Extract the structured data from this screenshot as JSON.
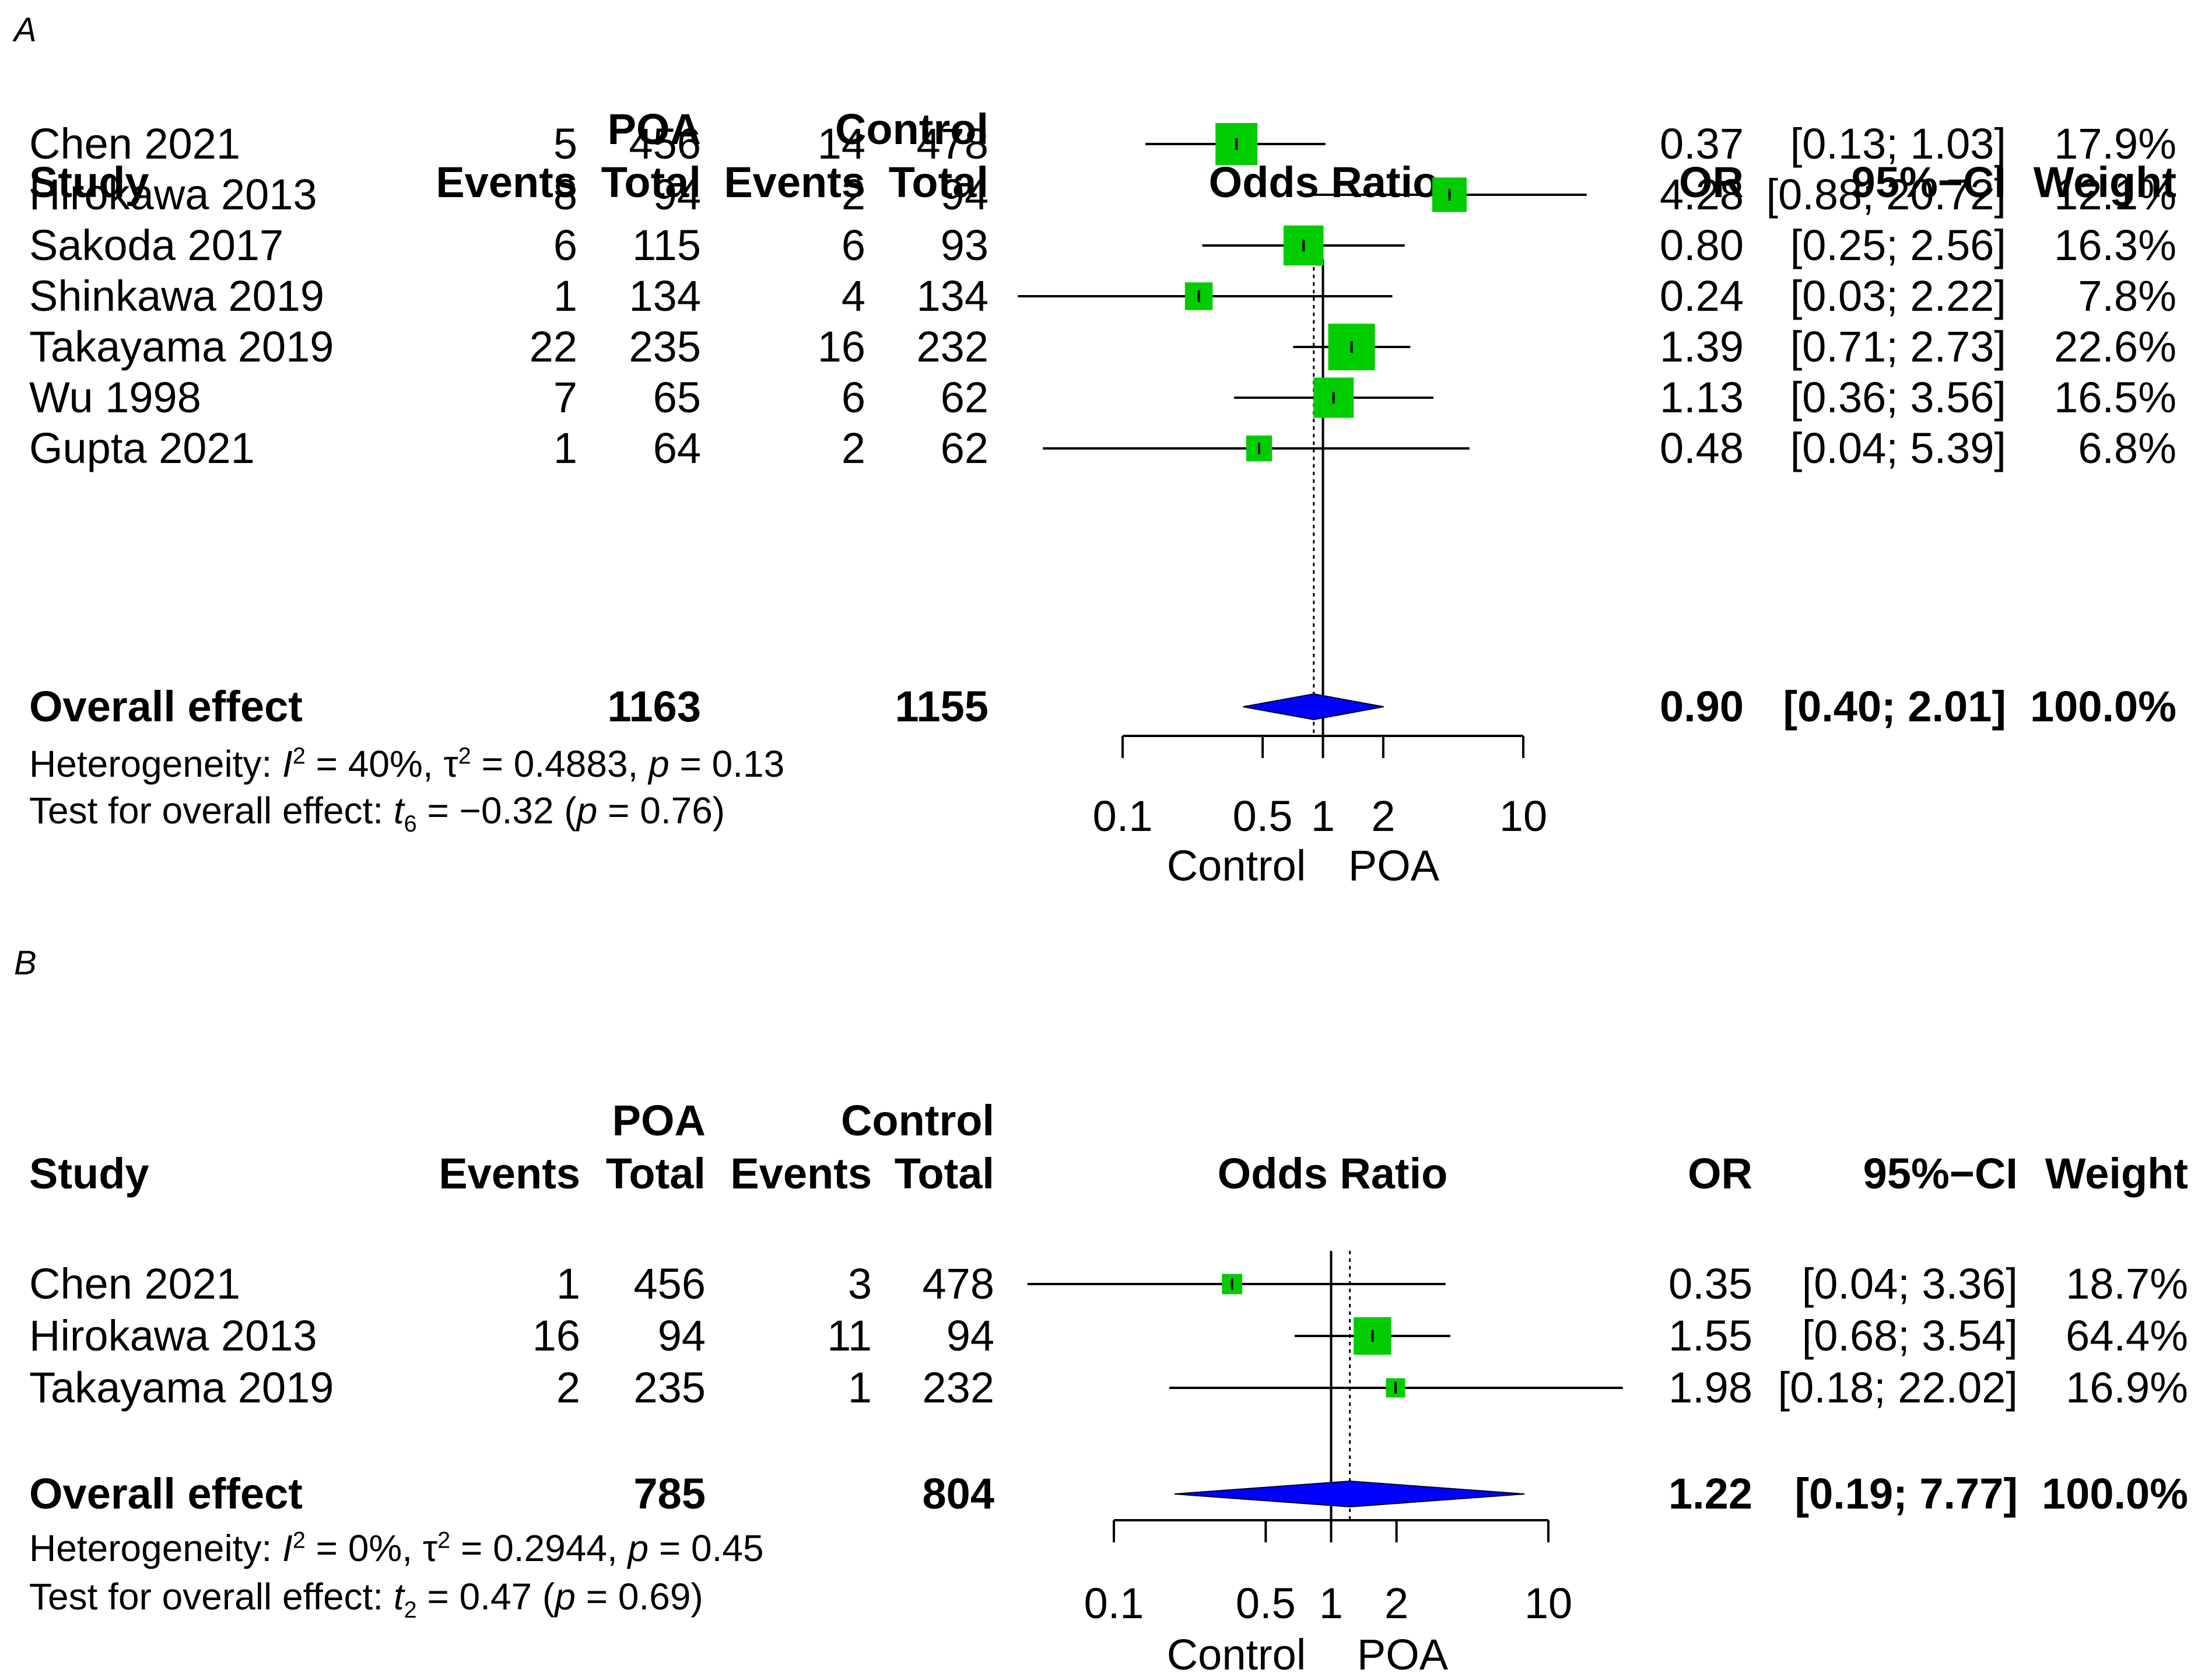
{
  "chart_data": [
    {
      "type": "forest",
      "panel_label": "A",
      "header": {
        "group_experimental": "POA",
        "group_control": "Control",
        "study": "Study",
        "events": "Events",
        "total": "Total",
        "plot_title": "Odds Ratio",
        "or": "OR",
        "ci": "95%−CI",
        "weight": "Weight"
      },
      "studies": [
        {
          "name": "Chen 2021",
          "e_events": "5",
          "e_total": "456",
          "c_events": "14",
          "c_total": "478",
          "or": 0.37,
          "lo": 0.13,
          "hi": 1.03,
          "or_text": "0.37",
          "ci_text": "[0.13;  1.03]",
          "weight": 17.9,
          "weight_text": "17.9%"
        },
        {
          "name": "Hirokawa 2013",
          "e_events": "8",
          "e_total": "94",
          "c_events": "2",
          "c_total": "94",
          "or": 4.28,
          "lo": 0.88,
          "hi": 20.72,
          "or_text": "4.28",
          "ci_text": "[0.88; 20.72]",
          "weight": 12.1,
          "weight_text": "12.1%"
        },
        {
          "name": "Sakoda 2017",
          "e_events": "6",
          "e_total": "115",
          "c_events": "6",
          "c_total": "93",
          "or": 0.8,
          "lo": 0.25,
          "hi": 2.56,
          "or_text": "0.80",
          "ci_text": "[0.25;  2.56]",
          "weight": 16.3,
          "weight_text": "16.3%"
        },
        {
          "name": "Shinkawa 2019",
          "e_events": "1",
          "e_total": "134",
          "c_events": "4",
          "c_total": "134",
          "or": 0.24,
          "lo": 0.03,
          "hi": 2.22,
          "or_text": "0.24",
          "ci_text": "[0.03;  2.22]",
          "weight": 7.8,
          "weight_text": "7.8%"
        },
        {
          "name": "Takayama 2019",
          "e_events": "22",
          "e_total": "235",
          "c_events": "16",
          "c_total": "232",
          "or": 1.39,
          "lo": 0.71,
          "hi": 2.73,
          "or_text": "1.39",
          "ci_text": "[0.71;  2.73]",
          "weight": 22.6,
          "weight_text": "22.6%"
        },
        {
          "name": "Wu 1998",
          "e_events": "7",
          "e_total": "65",
          "c_events": "6",
          "c_total": "62",
          "or": 1.13,
          "lo": 0.36,
          "hi": 3.56,
          "or_text": "1.13",
          "ci_text": "[0.36;  3.56]",
          "weight": 16.5,
          "weight_text": "16.5%"
        },
        {
          "name": "Gupta 2021",
          "e_events": "1",
          "e_total": "64",
          "c_events": "2",
          "c_total": "62",
          "or": 0.48,
          "lo": 0.04,
          "hi": 5.39,
          "or_text": "0.48",
          "ci_text": "[0.04;  5.39]",
          "weight": 6.8,
          "weight_text": "6.8%"
        }
      ],
      "overall": {
        "label": "Overall effect",
        "e_total": "1163",
        "c_total": "1155",
        "or": 0.9,
        "lo": 0.4,
        "hi": 2.01,
        "or_text": "0.90",
        "ci_text": "[0.40;  2.01]",
        "weight_text": "100.0%"
      },
      "heterogeneity": {
        "prefix": "Heterogeneity: ",
        "i2_symbol": "I",
        "i2_value": " = 40%, τ",
        "tau2_value": " = 0.4883, ",
        "p_symbol": "p",
        "p_value": " = 0.13"
      },
      "overall_test": {
        "prefix": "Test for overall effect: ",
        "t_symbol": "t",
        "df": "6",
        "t_value": " = −0.32 (",
        "p_symbol": "p",
        "p_value": " = 0.76)"
      },
      "axis": {
        "ticks": [
          0.1,
          0.5,
          1,
          2,
          10
        ],
        "tick_labels": [
          "0.1",
          "0.5",
          "1",
          "2",
          "10"
        ],
        "xlim": [
          0.1,
          10
        ],
        "scale": "log",
        "label_left": "Control",
        "label_right": "POA"
      }
    },
    {
      "type": "forest",
      "panel_label": "B",
      "header": {
        "group_experimental": "POA",
        "group_control": "Control",
        "study": "Study",
        "events": "Events",
        "total": "Total",
        "plot_title": "Odds Ratio",
        "or": "OR",
        "ci": "95%−CI",
        "weight": "Weight"
      },
      "studies": [
        {
          "name": "Chen 2021",
          "e_events": "1",
          "e_total": "456",
          "c_events": "3",
          "c_total": "478",
          "or": 0.35,
          "lo": 0.04,
          "hi": 3.36,
          "or_text": "0.35",
          "ci_text": "[0.04;  3.36]",
          "weight": 18.7,
          "weight_text": "18.7%"
        },
        {
          "name": "Hirokawa 2013",
          "e_events": "16",
          "e_total": "94",
          "c_events": "11",
          "c_total": "94",
          "or": 1.55,
          "lo": 0.68,
          "hi": 3.54,
          "or_text": "1.55",
          "ci_text": "[0.68;  3.54]",
          "weight": 64.4,
          "weight_text": "64.4%"
        },
        {
          "name": "Takayama 2019",
          "e_events": "2",
          "e_total": "235",
          "c_events": "1",
          "c_total": "232",
          "or": 1.98,
          "lo": 0.18,
          "hi": 22.02,
          "or_text": "1.98",
          "ci_text": "[0.18; 22.02]",
          "weight": 16.9,
          "weight_text": "16.9%"
        }
      ],
      "overall": {
        "label": "Overall effect",
        "e_total": "785",
        "c_total": "804",
        "or": 1.22,
        "lo": 0.19,
        "hi": 7.77,
        "or_text": "1.22",
        "ci_text": "[0.19;  7.77]",
        "weight_text": "100.0%"
      },
      "heterogeneity": {
        "prefix": "Heterogeneity: ",
        "i2_symbol": "I",
        "i2_value": " = 0%, τ",
        "tau2_value": " = 0.2944, ",
        "p_symbol": "p",
        "p_value": " = 0.45"
      },
      "overall_test": {
        "prefix": "Test for overall effect: ",
        "t_symbol": "t",
        "df": "2",
        "t_value": " = 0.47 (",
        "p_symbol": "p",
        "p_value": " = 0.69)"
      },
      "axis": {
        "ticks": [
          0.1,
          0.5,
          1,
          2,
          10
        ],
        "tick_labels": [
          "0.1",
          "0.5",
          "1",
          "2",
          "10"
        ],
        "xlim": [
          0.1,
          10
        ],
        "scale": "log",
        "label_left": "Control",
        "label_right": "POA"
      }
    }
  ]
}
